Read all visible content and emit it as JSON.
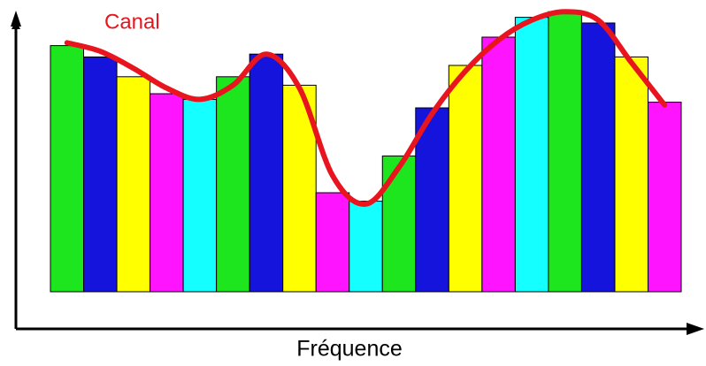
{
  "chart_data": {
    "type": "bar",
    "xlabel": "Fréquence",
    "categories": [
      null,
      null,
      null,
      null,
      null,
      null,
      null,
      null,
      null,
      null,
      null,
      null,
      null,
      null,
      null,
      null,
      null,
      null,
      null
    ],
    "values": [
      87,
      83,
      76,
      70,
      68,
      76,
      84,
      73,
      35,
      32,
      48,
      65,
      80,
      90,
      97,
      99,
      95,
      83,
      67
    ],
    "colors": [
      "#1ee61e",
      "#1414dc",
      "#ffff00",
      "#ff14ff",
      "#14ffff",
      "#1ee61e",
      "#1414dc",
      "#ffff00",
      "#ff14ff",
      "#14ffff",
      "#1ee61e",
      "#1414dc",
      "#ffff00",
      "#ff14ff",
      "#14ffff",
      "#1ee61e",
      "#1414dc",
      "#ffff00",
      "#ff14ff"
    ],
    "ylim": [
      0,
      100
    ],
    "series": [
      {
        "name": "Canal",
        "color": "#e8141e",
        "values": [
          88,
          85,
          79,
          72,
          68,
          73,
          84,
          72,
          41,
          31,
          44,
          63,
          78,
          89,
          96,
          99,
          96,
          81,
          66
        ]
      }
    ]
  }
}
